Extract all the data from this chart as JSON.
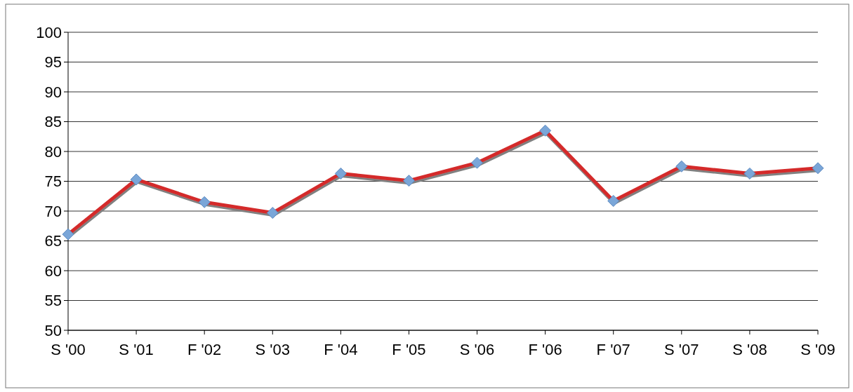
{
  "chart_data": {
    "type": "line",
    "categories": [
      "S '00",
      "S '01",
      "F '02",
      "S '03",
      "F '04",
      "F '05",
      "S '06",
      "F '06",
      "F '07",
      "S '07",
      "S '08",
      "S '09"
    ],
    "series": [
      {
        "color": "#d42a2a",
        "values": [
          66.1,
          75.3,
          71.5,
          69.7,
          76.3,
          75.1,
          78.1,
          83.5,
          71.7,
          77.5,
          76.3,
          77.2
        ]
      }
    ],
    "ylim": [
      50,
      100
    ],
    "yticks": [
      50,
      55,
      60,
      65,
      70,
      75,
      80,
      85,
      90,
      95,
      100
    ],
    "grid": "y",
    "marker": "diamond",
    "line_style": "solid"
  }
}
